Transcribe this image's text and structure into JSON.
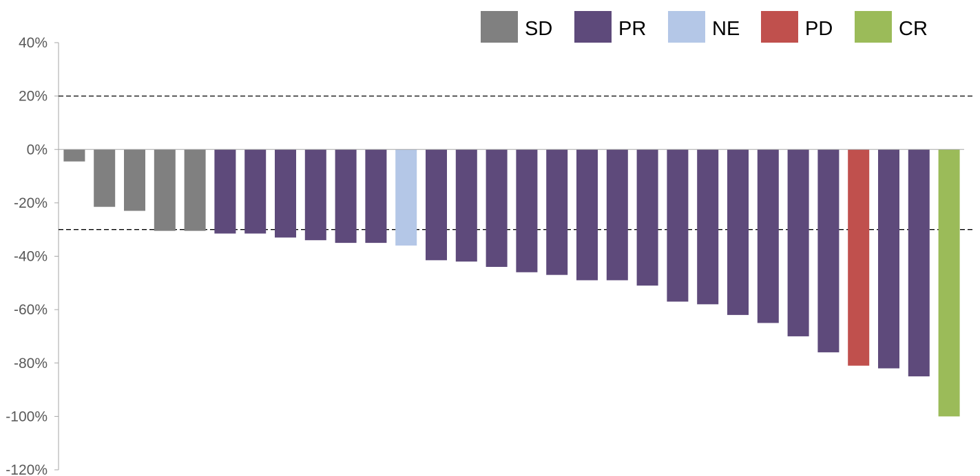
{
  "chart_data": {
    "type": "bar",
    "title": "",
    "xlabel": "",
    "ylabel": "",
    "ylim": [
      -120,
      40
    ],
    "y_ticks": [
      "40%",
      "20%",
      "0%",
      "-20%",
      "-40%",
      "-60%",
      "-80%",
      "-100%",
      "-120%"
    ],
    "y_tick_values": [
      40,
      20,
      0,
      -20,
      -40,
      -60,
      -80,
      -100,
      -120
    ],
    "reference_lines": [
      20,
      -30
    ],
    "legend_position": "top",
    "legend": [
      {
        "label": "SD",
        "color": "#808080"
      },
      {
        "label": "PR",
        "color": "#5e4a7b"
      },
      {
        "label": "NE",
        "color": "#b4c7e7"
      },
      {
        "label": "PD",
        "color": "#c0504d"
      },
      {
        "label": "CR",
        "color": "#9bbb59"
      }
    ],
    "bars": [
      {
        "value": -4.5,
        "category": "SD"
      },
      {
        "value": -21.5,
        "category": "SD"
      },
      {
        "value": -23,
        "category": "SD"
      },
      {
        "value": -30.5,
        "category": "SD"
      },
      {
        "value": -30.5,
        "category": "SD"
      },
      {
        "value": -31.5,
        "category": "PR"
      },
      {
        "value": -31.5,
        "category": "PR"
      },
      {
        "value": -33,
        "category": "PR"
      },
      {
        "value": -34,
        "category": "PR"
      },
      {
        "value": -35,
        "category": "PR"
      },
      {
        "value": -35,
        "category": "PR"
      },
      {
        "value": -36,
        "category": "NE"
      },
      {
        "value": -41.5,
        "category": "PR"
      },
      {
        "value": -42,
        "category": "PR"
      },
      {
        "value": -44,
        "category": "PR"
      },
      {
        "value": -46,
        "category": "PR"
      },
      {
        "value": -47,
        "category": "PR"
      },
      {
        "value": -49,
        "category": "PR"
      },
      {
        "value": -49,
        "category": "PR"
      },
      {
        "value": -51,
        "category": "PR"
      },
      {
        "value": -57,
        "category": "PR"
      },
      {
        "value": -58,
        "category": "PR"
      },
      {
        "value": -62,
        "category": "PR"
      },
      {
        "value": -65,
        "category": "PR"
      },
      {
        "value": -70,
        "category": "PR"
      },
      {
        "value": -76,
        "category": "PR"
      },
      {
        "value": -81,
        "category": "PD"
      },
      {
        "value": -82,
        "category": "PR"
      },
      {
        "value": -85,
        "category": "PR"
      },
      {
        "value": -100,
        "category": "CR"
      }
    ]
  }
}
